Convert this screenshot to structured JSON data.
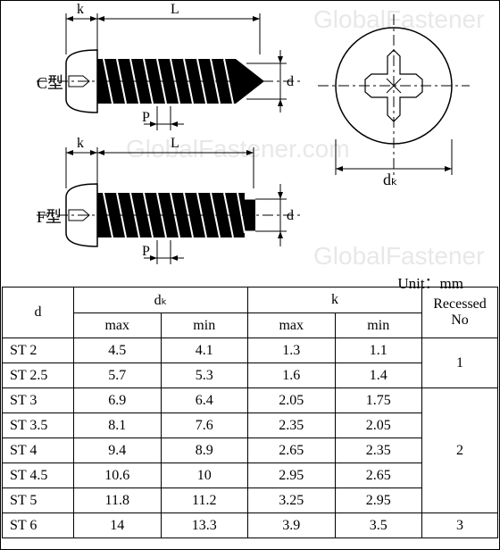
{
  "unit_label": "Unit：mm",
  "diagram": {
    "type_c_label": "C型",
    "type_f_label": "F型",
    "dim_k": "k",
    "dim_L": "L",
    "dim_d": "d",
    "dim_P": "P",
    "dim_dk": "dₖ",
    "screw_color": "#000000",
    "centerline_color": "#000000",
    "background": "#ffffff",
    "watermarks": [
      "GlobalFastener",
      "GlobalFastener.com",
      "GlobalFastener"
    ]
  },
  "table": {
    "headers": {
      "d": "d",
      "dk": "dₖ",
      "k": "k",
      "recessed": "Recessed No",
      "max": "max",
      "min": "min"
    },
    "rows": [
      {
        "d": "ST 2",
        "dk_max": "4.5",
        "dk_min": "4.1",
        "k_max": "1.3",
        "k_min": "1.1",
        "recess": "1"
      },
      {
        "d": "ST 2.5",
        "dk_max": "5.7",
        "dk_min": "5.3",
        "k_max": "1.6",
        "k_min": "1.4",
        "recess": "1"
      },
      {
        "d": "ST 3",
        "dk_max": "6.9",
        "dk_min": "6.4",
        "k_max": "2.05",
        "k_min": "1.75",
        "recess": "2"
      },
      {
        "d": "ST 3.5",
        "dk_max": "8.1",
        "dk_min": "7.6",
        "k_max": "2.35",
        "k_min": "2.05",
        "recess": "2"
      },
      {
        "d": "ST 4",
        "dk_max": "9.4",
        "dk_min": "8.9",
        "k_max": "2.65",
        "k_min": "2.35",
        "recess": "2"
      },
      {
        "d": "ST 4.5",
        "dk_max": "10.6",
        "dk_min": "10",
        "k_max": "2.95",
        "k_min": "2.65",
        "recess": "2"
      },
      {
        "d": "ST 5",
        "dk_max": "11.8",
        "dk_min": "11.2",
        "k_max": "3.25",
        "k_min": "2.95",
        "recess": "2"
      },
      {
        "d": "ST 6",
        "dk_max": "14",
        "dk_min": "13.3",
        "k_max": "3.9",
        "k_min": "3.5",
        "recess": "3"
      }
    ],
    "recess_groups": [
      {
        "value": "1",
        "rowspan": 2
      },
      {
        "value": "2",
        "rowspan": 5
      },
      {
        "value": "3",
        "rowspan": 1
      }
    ]
  }
}
